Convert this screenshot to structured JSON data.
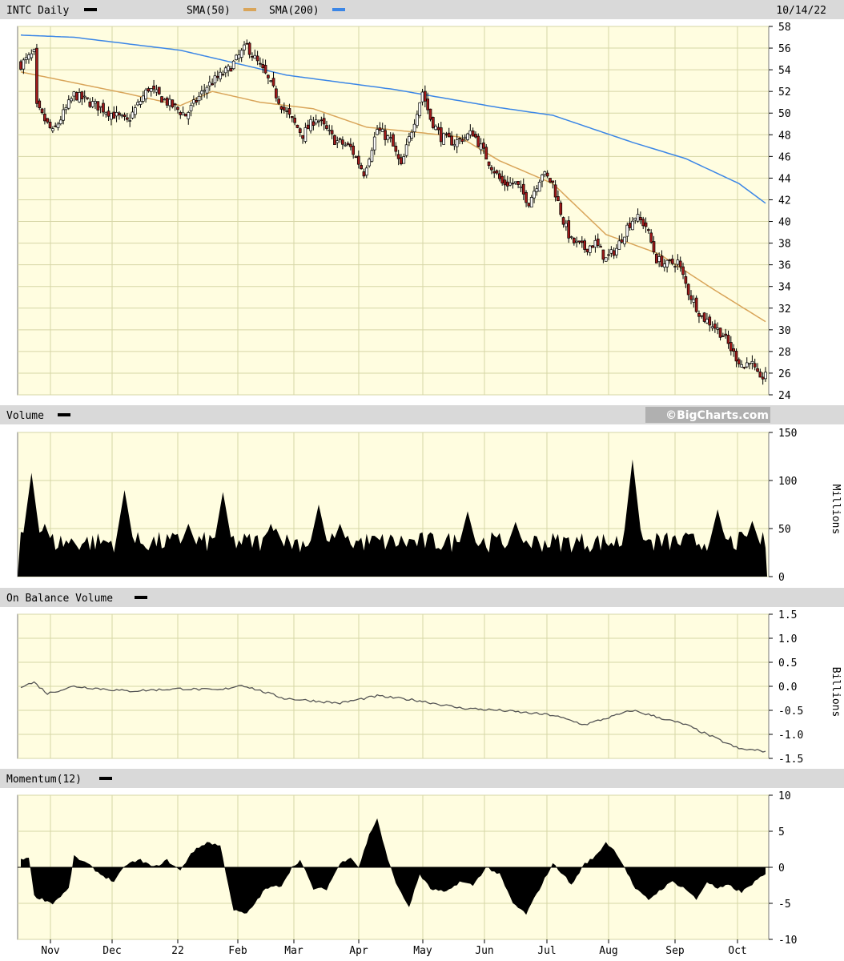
{
  "chart_data": [
    {
      "type": "candlestick",
      "panel": "price",
      "symbol_label": "INTC Daily",
      "date_label": "10/14/22",
      "legend": [
        {
          "name": "SMA(50)",
          "color": "#d9a55a"
        },
        {
          "name": "SMA(200)",
          "color": "#3b86e6"
        }
      ],
      "ylim": [
        24,
        58
      ],
      "yticks": [
        "58",
        "56",
        "54",
        "52",
        "50",
        "48",
        "46",
        "44",
        "42",
        "40",
        "38",
        "36",
        "34",
        "32",
        "30",
        "28",
        "26",
        "24"
      ],
      "xticks": [
        "Nov",
        "Dec",
        "22",
        "Feb",
        "Mar",
        "Apr",
        "May",
        "Jun",
        "Jul",
        "Aug",
        "Sep",
        "Oct"
      ],
      "up_color": "#ffffff",
      "down_color": "#a11a1a",
      "close_anchors": [
        [
          0,
          54.5
        ],
        [
          5,
          55.5
        ],
        [
          6,
          50.5
        ],
        [
          12,
          48.2
        ],
        [
          20,
          51.7
        ],
        [
          30,
          50.5
        ],
        [
          40,
          49.2
        ],
        [
          48,
          52.3
        ],
        [
          55,
          51
        ],
        [
          62,
          49.8
        ],
        [
          70,
          52.5
        ],
        [
          78,
          54
        ],
        [
          85,
          56.2
        ],
        [
          92,
          53.5
        ],
        [
          99,
          50.3
        ],
        [
          106,
          48
        ],
        [
          111,
          49.6
        ],
        [
          118,
          47.5
        ],
        [
          124,
          46.8
        ],
        [
          129,
          44.5
        ],
        [
          134,
          48.5
        ],
        [
          139,
          47.5
        ],
        [
          143,
          45
        ],
        [
          147,
          48.5
        ],
        [
          151,
          52
        ],
        [
          154,
          49.5
        ],
        [
          158,
          47.8
        ],
        [
          163,
          47.3
        ],
        [
          170,
          48.2
        ],
        [
          176,
          45.5
        ],
        [
          181,
          43.5
        ],
        [
          186,
          43.5
        ],
        [
          191,
          41.8
        ],
        [
          196,
          44.5
        ],
        [
          200,
          43.5
        ],
        [
          204,
          40
        ],
        [
          207,
          38.2
        ],
        [
          212,
          37.5
        ],
        [
          216,
          38
        ],
        [
          220,
          36.5
        ],
        [
          224,
          37.5
        ],
        [
          228,
          39.5
        ],
        [
          231,
          40.5
        ],
        [
          235,
          39.6
        ],
        [
          239,
          36.5
        ],
        [
          243,
          36
        ],
        [
          247,
          36.3
        ],
        [
          251,
          33.5
        ],
        [
          256,
          31.2
        ],
        [
          260,
          30.5
        ],
        [
          264,
          29.5
        ],
        [
          268,
          27.8
        ],
        [
          272,
          26.5
        ],
        [
          274,
          27.3
        ],
        [
          278,
          25.2
        ],
        [
          280,
          26.2
        ]
      ],
      "sma50_anchors": [
        [
          0,
          53.8
        ],
        [
          40,
          51.8
        ],
        [
          60,
          50.7
        ],
        [
          72,
          52
        ],
        [
          90,
          51
        ],
        [
          110,
          50.4
        ],
        [
          130,
          48.7
        ],
        [
          150,
          48.2
        ],
        [
          165,
          47.8
        ],
        [
          180,
          45.6
        ],
        [
          200,
          43.5
        ],
        [
          220,
          38.8
        ],
        [
          240,
          37
        ],
        [
          260,
          33.8
        ],
        [
          281,
          30.6
        ]
      ],
      "sma200_anchors": [
        [
          0,
          57.2
        ],
        [
          20,
          57
        ],
        [
          60,
          55.8
        ],
        [
          100,
          53.5
        ],
        [
          140,
          52.2
        ],
        [
          180,
          50.5
        ],
        [
          200,
          49.8
        ],
        [
          230,
          47.3
        ],
        [
          250,
          45.8
        ],
        [
          270,
          43.5
        ],
        [
          281,
          41.5
        ]
      ]
    },
    {
      "type": "area",
      "panel": "volume",
      "title": "Volume",
      "ylabel": "Millions",
      "ylim": [
        0,
        150
      ],
      "yticks": [
        "150",
        "100",
        "50",
        "0"
      ],
      "baseline": 25,
      "spikes": [
        [
          4,
          108
        ],
        [
          9,
          55
        ],
        [
          39,
          90
        ],
        [
          63,
          55
        ],
        [
          76,
          88
        ],
        [
          94,
          55
        ],
        [
          96,
          50
        ],
        [
          112,
          75
        ],
        [
          120,
          55
        ],
        [
          168,
          68
        ],
        [
          186,
          57
        ],
        [
          230,
          122
        ],
        [
          262,
          70
        ],
        [
          275,
          58
        ]
      ]
    },
    {
      "type": "line",
      "panel": "obv",
      "title": "On Balance Volume",
      "ylabel": "Billions",
      "ylim": [
        -1.5,
        1.5
      ],
      "yticks": [
        "1.5",
        "1.0",
        "0.5",
        "0.0",
        "-0.5",
        "-1.0",
        "-1.5"
      ],
      "anchors": [
        [
          0,
          0.0
        ],
        [
          5,
          0.08
        ],
        [
          10,
          -0.15
        ],
        [
          20,
          0.0
        ],
        [
          40,
          -0.1
        ],
        [
          60,
          -0.05
        ],
        [
          75,
          -0.08
        ],
        [
          83,
          0.03
        ],
        [
          99,
          -0.25
        ],
        [
          120,
          -0.35
        ],
        [
          134,
          -0.2
        ],
        [
          150,
          -0.3
        ],
        [
          165,
          -0.45
        ],
        [
          180,
          -0.5
        ],
        [
          200,
          -0.6
        ],
        [
          212,
          -0.8
        ],
        [
          230,
          -0.5
        ],
        [
          250,
          -0.8
        ],
        [
          260,
          -1.05
        ],
        [
          270,
          -1.3
        ],
        [
          280,
          -1.35
        ]
      ]
    },
    {
      "type": "area",
      "panel": "momentum",
      "title": "Momentum(12)",
      "ylim": [
        -10,
        10
      ],
      "yticks": [
        "10",
        "5",
        "0",
        "-5",
        "-10"
      ],
      "anchors": [
        [
          0,
          1
        ],
        [
          3,
          1.5
        ],
        [
          5,
          -4
        ],
        [
          12,
          -5
        ],
        [
          18,
          -3
        ],
        [
          20,
          1.5
        ],
        [
          25,
          0.5
        ],
        [
          30,
          -1
        ],
        [
          35,
          -2
        ],
        [
          40,
          0.5
        ],
        [
          45,
          1
        ],
        [
          50,
          0
        ],
        [
          55,
          1
        ],
        [
          60,
          -0.5
        ],
        [
          64,
          2
        ],
        [
          70,
          3.5
        ],
        [
          75,
          3
        ],
        [
          80,
          -6
        ],
        [
          85,
          -6.5
        ],
        [
          92,
          -3
        ],
        [
          98,
          -2.5
        ],
        [
          102,
          0
        ],
        [
          105,
          1
        ],
        [
          110,
          -3
        ],
        [
          115,
          -3
        ],
        [
          120,
          0.5
        ],
        [
          124,
          1.5
        ],
        [
          127,
          0
        ],
        [
          131,
          4.5
        ],
        [
          134,
          6.8
        ],
        [
          138,
          1
        ],
        [
          142,
          -3
        ],
        [
          146,
          -5.5
        ],
        [
          150,
          -1
        ],
        [
          154,
          -3
        ],
        [
          160,
          -3.5
        ],
        [
          165,
          -2
        ],
        [
          170,
          -2.5
        ],
        [
          175,
          0
        ],
        [
          180,
          -1
        ],
        [
          185,
          -5
        ],
        [
          190,
          -6.5
        ],
        [
          195,
          -3
        ],
        [
          200,
          0.5
        ],
        [
          204,
          -1
        ],
        [
          207,
          -2.5
        ],
        [
          212,
          0.5
        ],
        [
          216,
          1.5
        ],
        [
          220,
          3.5
        ],
        [
          224,
          2
        ],
        [
          227,
          0
        ],
        [
          231,
          -3
        ],
        [
          236,
          -4.5
        ],
        [
          241,
          -3
        ],
        [
          245,
          -2
        ],
        [
          250,
          -3
        ],
        [
          254,
          -4.5
        ],
        [
          258,
          -2
        ],
        [
          262,
          -3
        ],
        [
          266,
          -2.5
        ],
        [
          271,
          -3.5
        ],
        [
          276,
          -2
        ],
        [
          280,
          -1
        ]
      ]
    }
  ],
  "watermark": "©BigCharts.com"
}
